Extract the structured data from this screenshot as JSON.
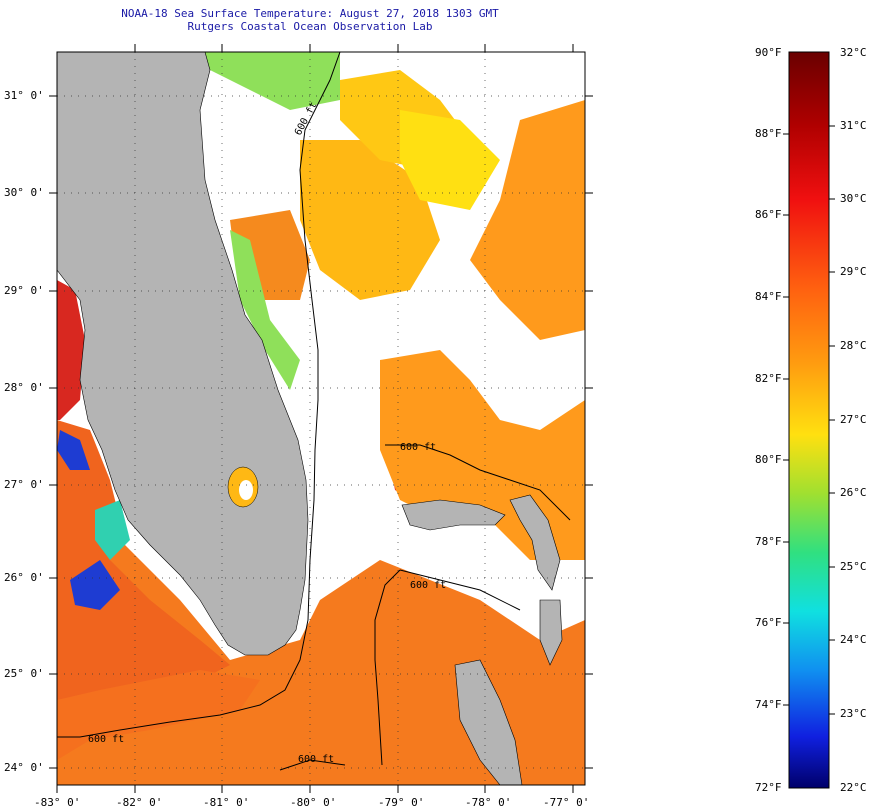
{
  "title": {
    "line1": "NOAA-18 Sea Surface Temperature:  August 27, 2018 1303 GMT",
    "line2": "Rutgers Coastal Ocean Observation Lab"
  },
  "map": {
    "lon_labels": [
      "-83° 0'",
      "-82° 0'",
      "-81° 0'",
      "-80° 0'",
      "-79° 0'",
      "-78° 0'",
      "-77° 0'"
    ],
    "lat_labels": [
      "31° 0'",
      "30° 0'",
      "29° 0'",
      "28° 0'",
      "27° 0'",
      "26° 0'",
      "25° 0'",
      "24° 0'"
    ],
    "contour_labels": [
      "600 ft",
      "600 ft",
      "600 ft",
      "600 ft",
      "600 ft"
    ],
    "colors": {
      "land": "#b4b4b4",
      "no_data": "#ffffff",
      "warm_orange": "#f57a1e",
      "orange": "#ff9a1c",
      "yellow_orange": "#ffb814",
      "red": "#e8321e",
      "cool_green": "#8fe05a",
      "cool_blue": "#1e3cd2"
    }
  },
  "colorbar": {
    "f_labels": [
      "90°F",
      "88°F",
      "86°F",
      "84°F",
      "82°F",
      "80°F",
      "78°F",
      "76°F",
      "74°F",
      "72°F"
    ],
    "c_labels": [
      "32°C",
      "31°C",
      "30°C",
      "29°C",
      "28°C",
      "27°C",
      "26°C",
      "25°C",
      "24°C",
      "23°C",
      "22°C"
    ]
  }
}
